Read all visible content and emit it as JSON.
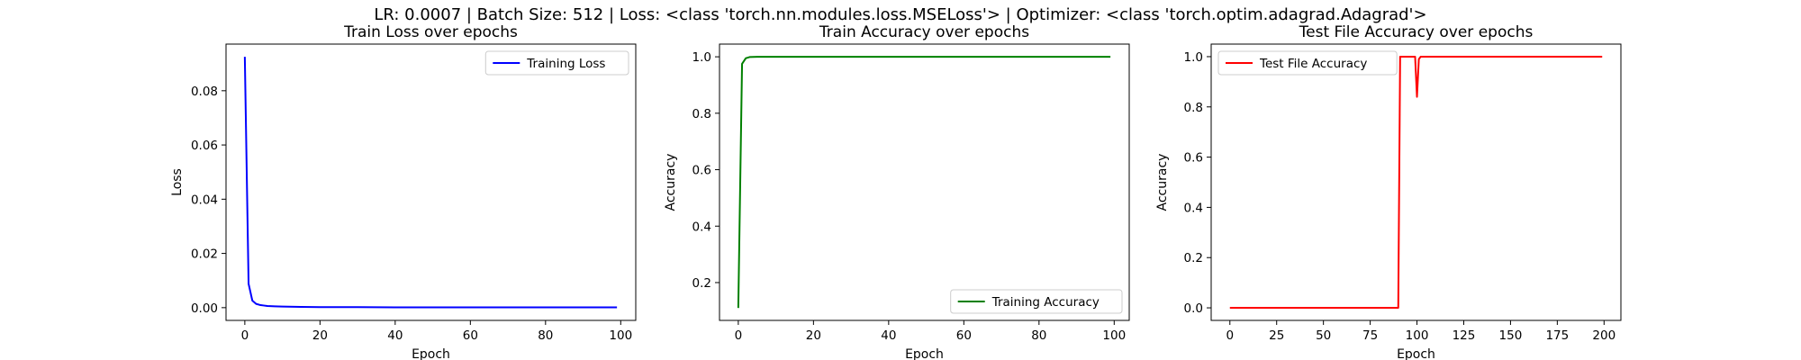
{
  "figure": {
    "suptitle": "LR: 0.0007 | Batch Size: 512 | Loss: <class 'torch.nn.modules.loss.MSELoss'> | Optimizer: <class 'torch.optim.adagrad.Adagrad'>"
  },
  "chart_data": [
    {
      "type": "line",
      "title": "Train Loss over epochs",
      "xlabel": "Epoch",
      "ylabel": "Loss",
      "xlim": [
        -5,
        104
      ],
      "ylim": [
        -0.0047,
        0.0972
      ],
      "xticks": [
        0,
        20,
        40,
        60,
        80,
        100
      ],
      "xtick_labels": [
        "0",
        "20",
        "40",
        "60",
        "80",
        "100"
      ],
      "yticks": [
        0.0,
        0.02,
        0.04,
        0.06,
        0.08
      ],
      "ytick_labels": [
        "0.00",
        "0.02",
        "0.04",
        "0.06",
        "0.08"
      ],
      "grid": false,
      "legend": "upper right",
      "series": [
        {
          "name": "Training Loss",
          "color": "#0000ff",
          "x": [
            0,
            1,
            2,
            3,
            4,
            5,
            6,
            8,
            10,
            15,
            20,
            30,
            40,
            60,
            80,
            99
          ],
          "y": [
            0.0925,
            0.0088,
            0.0026,
            0.0014,
            0.001,
            0.0008,
            0.0006,
            0.0005,
            0.0004,
            0.0003,
            0.0002,
            0.0002,
            0.0001,
            0.0001,
            0.0001,
            0.0001
          ]
        }
      ]
    },
    {
      "type": "line",
      "title": "Train Accuracy over epochs",
      "xlabel": "Epoch",
      "ylabel": "Accuracy",
      "xlim": [
        -5,
        104
      ],
      "ylim": [
        0.066,
        1.045
      ],
      "xticks": [
        0,
        20,
        40,
        60,
        80,
        100
      ],
      "xtick_labels": [
        "0",
        "20",
        "40",
        "60",
        "80",
        "100"
      ],
      "yticks": [
        0.2,
        0.4,
        0.6,
        0.8,
        1.0
      ],
      "ytick_labels": [
        "0.2",
        "0.4",
        "0.6",
        "0.8",
        "1.0"
      ],
      "grid": false,
      "legend": "lower right",
      "series": [
        {
          "name": "Training Accuracy",
          "color": "#008000",
          "x": [
            0,
            1,
            2,
            3,
            5,
            10,
            20,
            40,
            60,
            80,
            99
          ],
          "y": [
            0.11,
            0.975,
            0.995,
            0.999,
            1.0,
            1.0,
            1.0,
            1.0,
            1.0,
            1.0,
            1.0
          ]
        }
      ]
    },
    {
      "type": "line",
      "title": "Test File Accuracy over epochs",
      "xlabel": "Epoch",
      "ylabel": "Accuracy",
      "xlim": [
        -10,
        209
      ],
      "ylim": [
        -0.05,
        1.05
      ],
      "xticks": [
        0,
        25,
        50,
        75,
        100,
        125,
        150,
        175,
        200
      ],
      "xtick_labels": [
        "0",
        "25",
        "50",
        "75",
        "100",
        "125",
        "150",
        "175",
        "200"
      ],
      "yticks": [
        0.0,
        0.2,
        0.4,
        0.6,
        0.8,
        1.0
      ],
      "ytick_labels": [
        "0.0",
        "0.2",
        "0.4",
        "0.6",
        "0.8",
        "1.0"
      ],
      "grid": false,
      "legend": "upper left",
      "series": [
        {
          "name": "Test File Accuracy",
          "color": "#ff0000",
          "x": [
            0,
            90,
            91,
            99,
            100,
            101,
            102,
            150,
            199
          ],
          "y": [
            0.0,
            0.0,
            1.0,
            1.0,
            0.84,
            0.99,
            1.0,
            1.0,
            1.0
          ]
        }
      ]
    }
  ]
}
